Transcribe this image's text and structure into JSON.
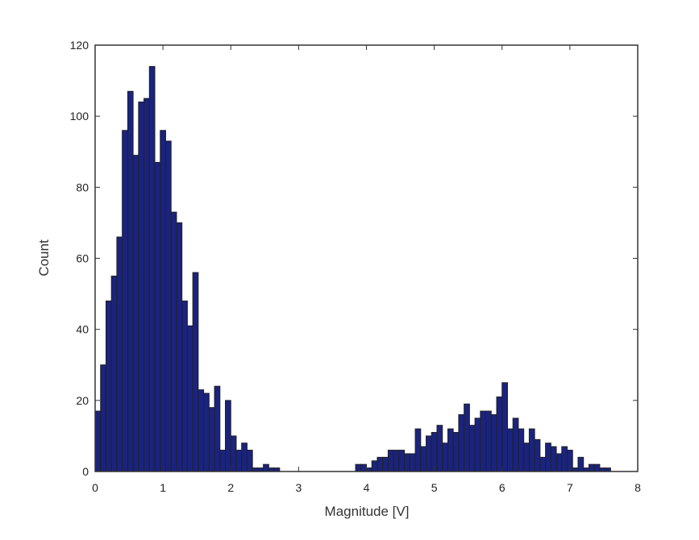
{
  "chart_data": {
    "type": "bar",
    "title": "",
    "xlabel": "Magnitude [V]",
    "ylabel": "Count",
    "xlim": [
      0,
      8
    ],
    "ylim": [
      0,
      120
    ],
    "xticks": [
      0,
      1,
      2,
      3,
      4,
      5,
      6,
      7,
      8
    ],
    "yticks": [
      0,
      20,
      40,
      60,
      80,
      100,
      120
    ],
    "grid": false,
    "legend": null,
    "bar_color": "#1a237e",
    "edge_color": "#222222",
    "bin_width": 0.08,
    "bins": [
      {
        "x": 0.0,
        "count": 17
      },
      {
        "x": 0.08,
        "count": 30
      },
      {
        "x": 0.16,
        "count": 48
      },
      {
        "x": 0.24,
        "count": 55
      },
      {
        "x": 0.32,
        "count": 66
      },
      {
        "x": 0.4,
        "count": 96
      },
      {
        "x": 0.48,
        "count": 107
      },
      {
        "x": 0.56,
        "count": 89
      },
      {
        "x": 0.64,
        "count": 104
      },
      {
        "x": 0.72,
        "count": 105
      },
      {
        "x": 0.8,
        "count": 114
      },
      {
        "x": 0.88,
        "count": 87
      },
      {
        "x": 0.96,
        "count": 96
      },
      {
        "x": 1.04,
        "count": 93
      },
      {
        "x": 1.12,
        "count": 73
      },
      {
        "x": 1.2,
        "count": 70
      },
      {
        "x": 1.28,
        "count": 48
      },
      {
        "x": 1.36,
        "count": 41
      },
      {
        "x": 1.44,
        "count": 56
      },
      {
        "x": 1.52,
        "count": 23
      },
      {
        "x": 1.6,
        "count": 22
      },
      {
        "x": 1.68,
        "count": 18
      },
      {
        "x": 1.76,
        "count": 24
      },
      {
        "x": 1.84,
        "count": 6
      },
      {
        "x": 1.92,
        "count": 20
      },
      {
        "x": 2.0,
        "count": 10
      },
      {
        "x": 2.08,
        "count": 6
      },
      {
        "x": 2.16,
        "count": 8
      },
      {
        "x": 2.24,
        "count": 6
      },
      {
        "x": 2.32,
        "count": 1
      },
      {
        "x": 2.4,
        "count": 1
      },
      {
        "x": 2.48,
        "count": 2
      },
      {
        "x": 2.56,
        "count": 1
      },
      {
        "x": 2.64,
        "count": 1
      },
      {
        "x": 3.84,
        "count": 2
      },
      {
        "x": 3.92,
        "count": 2
      },
      {
        "x": 4.0,
        "count": 1
      },
      {
        "x": 4.08,
        "count": 3
      },
      {
        "x": 4.16,
        "count": 4
      },
      {
        "x": 4.24,
        "count": 4
      },
      {
        "x": 4.32,
        "count": 6
      },
      {
        "x": 4.4,
        "count": 6
      },
      {
        "x": 4.48,
        "count": 6
      },
      {
        "x": 4.56,
        "count": 5
      },
      {
        "x": 4.64,
        "count": 5
      },
      {
        "x": 4.72,
        "count": 12
      },
      {
        "x": 4.8,
        "count": 7
      },
      {
        "x": 4.88,
        "count": 10
      },
      {
        "x": 4.96,
        "count": 11
      },
      {
        "x": 5.04,
        "count": 13
      },
      {
        "x": 5.12,
        "count": 8
      },
      {
        "x": 5.2,
        "count": 12
      },
      {
        "x": 5.28,
        "count": 11
      },
      {
        "x": 5.36,
        "count": 16
      },
      {
        "x": 5.44,
        "count": 19
      },
      {
        "x": 5.52,
        "count": 13
      },
      {
        "x": 5.6,
        "count": 15
      },
      {
        "x": 5.68,
        "count": 17
      },
      {
        "x": 5.76,
        "count": 17
      },
      {
        "x": 5.84,
        "count": 16
      },
      {
        "x": 5.92,
        "count": 21
      },
      {
        "x": 6.0,
        "count": 25
      },
      {
        "x": 6.08,
        "count": 12
      },
      {
        "x": 6.16,
        "count": 15
      },
      {
        "x": 6.24,
        "count": 12
      },
      {
        "x": 6.32,
        "count": 8
      },
      {
        "x": 6.4,
        "count": 12
      },
      {
        "x": 6.48,
        "count": 9
      },
      {
        "x": 6.56,
        "count": 4
      },
      {
        "x": 6.64,
        "count": 8
      },
      {
        "x": 6.72,
        "count": 7
      },
      {
        "x": 6.8,
        "count": 5
      },
      {
        "x": 6.88,
        "count": 7
      },
      {
        "x": 6.96,
        "count": 6
      },
      {
        "x": 7.04,
        "count": 1
      },
      {
        "x": 7.12,
        "count": 4
      },
      {
        "x": 7.2,
        "count": 1
      },
      {
        "x": 7.28,
        "count": 2
      },
      {
        "x": 7.36,
        "count": 2
      },
      {
        "x": 7.44,
        "count": 1
      },
      {
        "x": 7.52,
        "count": 1
      }
    ]
  }
}
